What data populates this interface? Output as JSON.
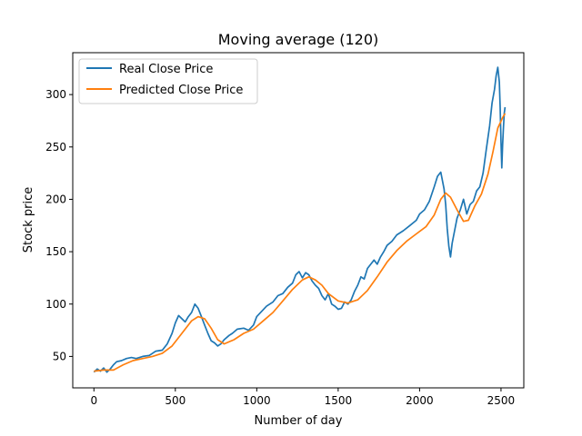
{
  "chart_data": {
    "type": "line",
    "title": "Moving average (120)",
    "xlabel": "Number of day",
    "ylabel": "Stock price",
    "xlim": [
      -130,
      2640
    ],
    "ylim": [
      20,
      340
    ],
    "xticks": [
      0,
      500,
      1000,
      1500,
      2000,
      2500
    ],
    "yticks": [
      50,
      100,
      150,
      200,
      250,
      300
    ],
    "grid": false,
    "legend_position": "top-left",
    "series": [
      {
        "name": "Real Close Price",
        "color": "#1f77b4",
        "points": [
          [
            0,
            35
          ],
          [
            20,
            38
          ],
          [
            40,
            36
          ],
          [
            60,
            39
          ],
          [
            80,
            35
          ],
          [
            100,
            38
          ],
          [
            120,
            42
          ],
          [
            140,
            45
          ],
          [
            170,
            46
          ],
          [
            200,
            48
          ],
          [
            230,
            49
          ],
          [
            260,
            48
          ],
          [
            300,
            50
          ],
          [
            340,
            51
          ],
          [
            380,
            55
          ],
          [
            420,
            56
          ],
          [
            450,
            62
          ],
          [
            480,
            72
          ],
          [
            500,
            82
          ],
          [
            520,
            89
          ],
          [
            540,
            86
          ],
          [
            560,
            83
          ],
          [
            580,
            88
          ],
          [
            600,
            92
          ],
          [
            620,
            100
          ],
          [
            640,
            96
          ],
          [
            660,
            88
          ],
          [
            680,
            80
          ],
          [
            700,
            72
          ],
          [
            720,
            65
          ],
          [
            740,
            63
          ],
          [
            760,
            60
          ],
          [
            780,
            62
          ],
          [
            800,
            66
          ],
          [
            830,
            70
          ],
          [
            850,
            72
          ],
          [
            880,
            76
          ],
          [
            920,
            77
          ],
          [
            950,
            75
          ],
          [
            980,
            80
          ],
          [
            1000,
            88
          ],
          [
            1030,
            93
          ],
          [
            1060,
            98
          ],
          [
            1100,
            102
          ],
          [
            1130,
            108
          ],
          [
            1160,
            110
          ],
          [
            1190,
            116
          ],
          [
            1220,
            120
          ],
          [
            1240,
            128
          ],
          [
            1260,
            131
          ],
          [
            1280,
            125
          ],
          [
            1300,
            130
          ],
          [
            1320,
            128
          ],
          [
            1340,
            122
          ],
          [
            1360,
            118
          ],
          [
            1380,
            115
          ],
          [
            1400,
            108
          ],
          [
            1420,
            104
          ],
          [
            1440,
            110
          ],
          [
            1460,
            100
          ],
          [
            1480,
            98
          ],
          [
            1500,
            95
          ],
          [
            1520,
            96
          ],
          [
            1540,
            102
          ],
          [
            1560,
            100
          ],
          [
            1580,
            104
          ],
          [
            1600,
            112
          ],
          [
            1620,
            118
          ],
          [
            1640,
            126
          ],
          [
            1660,
            124
          ],
          [
            1680,
            134
          ],
          [
            1700,
            138
          ],
          [
            1720,
            142
          ],
          [
            1740,
            138
          ],
          [
            1760,
            145
          ],
          [
            1780,
            150
          ],
          [
            1800,
            156
          ],
          [
            1830,
            160
          ],
          [
            1860,
            166
          ],
          [
            1900,
            170
          ],
          [
            1940,
            175
          ],
          [
            1980,
            180
          ],
          [
            2000,
            186
          ],
          [
            2030,
            190
          ],
          [
            2060,
            198
          ],
          [
            2090,
            212
          ],
          [
            2110,
            222
          ],
          [
            2130,
            226
          ],
          [
            2150,
            210
          ],
          [
            2160,
            195
          ],
          [
            2170,
            172
          ],
          [
            2180,
            155
          ],
          [
            2190,
            145
          ],
          [
            2200,
            158
          ],
          [
            2215,
            170
          ],
          [
            2230,
            182
          ],
          [
            2250,
            190
          ],
          [
            2270,
            200
          ],
          [
            2290,
            186
          ],
          [
            2310,
            195
          ],
          [
            2330,
            198
          ],
          [
            2350,
            208
          ],
          [
            2370,
            212
          ],
          [
            2390,
            225
          ],
          [
            2410,
            248
          ],
          [
            2430,
            270
          ],
          [
            2445,
            292
          ],
          [
            2460,
            305
          ],
          [
            2470,
            318
          ],
          [
            2480,
            326
          ],
          [
            2490,
            312
          ],
          [
            2495,
            288
          ],
          [
            2500,
            256
          ],
          [
            2505,
            230
          ],
          [
            2510,
            252
          ],
          [
            2515,
            268
          ],
          [
            2520,
            282
          ],
          [
            2525,
            288
          ]
        ]
      },
      {
        "name": "Predicted Close Price",
        "color": "#ff7f0e",
        "points": [
          [
            0,
            36
          ],
          [
            60,
            37
          ],
          [
            120,
            37
          ],
          [
            180,
            42
          ],
          [
            240,
            46
          ],
          [
            300,
            48
          ],
          [
            360,
            50
          ],
          [
            420,
            53
          ],
          [
            480,
            60
          ],
          [
            540,
            72
          ],
          [
            600,
            84
          ],
          [
            640,
            88
          ],
          [
            680,
            86
          ],
          [
            720,
            77
          ],
          [
            760,
            66
          ],
          [
            800,
            62
          ],
          [
            860,
            66
          ],
          [
            920,
            72
          ],
          [
            980,
            76
          ],
          [
            1040,
            84
          ],
          [
            1100,
            92
          ],
          [
            1160,
            103
          ],
          [
            1220,
            114
          ],
          [
            1280,
            123
          ],
          [
            1320,
            126
          ],
          [
            1360,
            123
          ],
          [
            1400,
            118
          ],
          [
            1440,
            110
          ],
          [
            1500,
            103
          ],
          [
            1560,
            101
          ],
          [
            1620,
            104
          ],
          [
            1680,
            113
          ],
          [
            1740,
            126
          ],
          [
            1800,
            140
          ],
          [
            1860,
            151
          ],
          [
            1920,
            160
          ],
          [
            1980,
            167
          ],
          [
            2040,
            174
          ],
          [
            2090,
            185
          ],
          [
            2130,
            200
          ],
          [
            2160,
            206
          ],
          [
            2190,
            202
          ],
          [
            2230,
            190
          ],
          [
            2270,
            179
          ],
          [
            2300,
            180
          ],
          [
            2340,
            194
          ],
          [
            2380,
            205
          ],
          [
            2420,
            224
          ],
          [
            2450,
            245
          ],
          [
            2480,
            268
          ],
          [
            2510,
            278
          ],
          [
            2525,
            282
          ]
        ]
      }
    ]
  }
}
